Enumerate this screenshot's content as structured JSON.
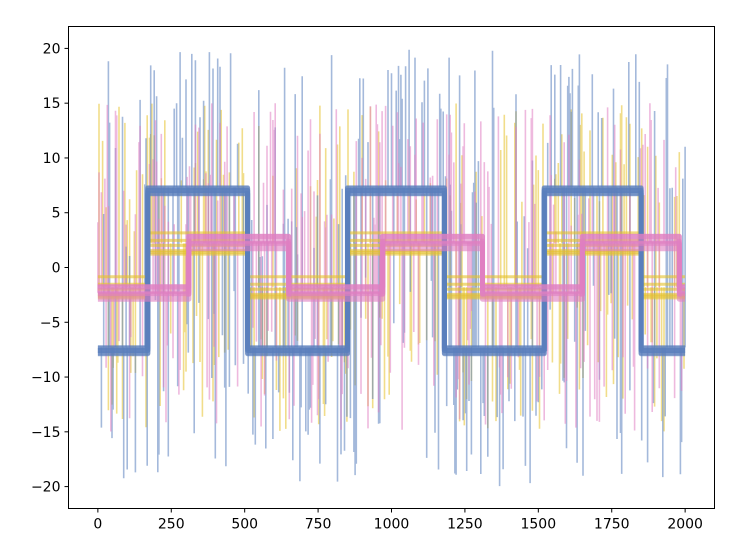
{
  "chart_data": {
    "type": "line",
    "title": "",
    "xlabel": "",
    "ylabel": "",
    "xlim": [
      -100,
      2100
    ],
    "ylim": [
      -22,
      22
    ],
    "xticks": [
      0,
      250,
      500,
      750,
      1000,
      1250,
      1500,
      1750,
      2000
    ],
    "yticks": [
      -20,
      -15,
      -10,
      -5,
      0,
      5,
      10,
      15,
      20
    ],
    "xtick_labels": [
      "0",
      "250",
      "500",
      "750",
      "1000",
      "1250",
      "1500",
      "1750",
      "2000"
    ],
    "ytick_labels": [
      "−20",
      "−15",
      "−10",
      "−5",
      "0",
      "5",
      "10",
      "15",
      "20"
    ],
    "grid": false,
    "legend": "none",
    "series": [
      {
        "name": "yellow",
        "color": "#e5c12a",
        "x_range": [
          0,
          2000
        ],
        "step_levels": [
          -1.8,
          2.2,
          -1.8,
          2.2,
          -1.8,
          2.2,
          -1.8
        ],
        "step_transitions": [
          170,
          510,
          850,
          1180,
          1520,
          1850
        ],
        "level_spread": 1.0,
        "spike_range": [
          -15,
          15
        ]
      },
      {
        "name": "blue",
        "color": "#5a7fbd",
        "x_range": [
          0,
          2000
        ],
        "step_levels": [
          -7.3,
          7.3,
          -7.3,
          7.3,
          -7.3,
          7.3,
          -7.3
        ],
        "step_transitions": [
          170,
          510,
          850,
          1180,
          1520,
          1850
        ],
        "level_spread": 0.6,
        "spike_range": [
          -20,
          20
        ]
      },
      {
        "name": "pink",
        "color": "#e07fc2",
        "x_range": [
          0,
          2000
        ],
        "step_levels": [
          -2.3,
          2.3,
          -2.3,
          2.3,
          -2.3,
          2.3,
          -2.3
        ],
        "step_transitions": [
          310,
          650,
          970,
          1310,
          1650,
          1980
        ],
        "level_spread": 0.6,
        "spike_range": [
          -15,
          15
        ]
      }
    ]
  }
}
